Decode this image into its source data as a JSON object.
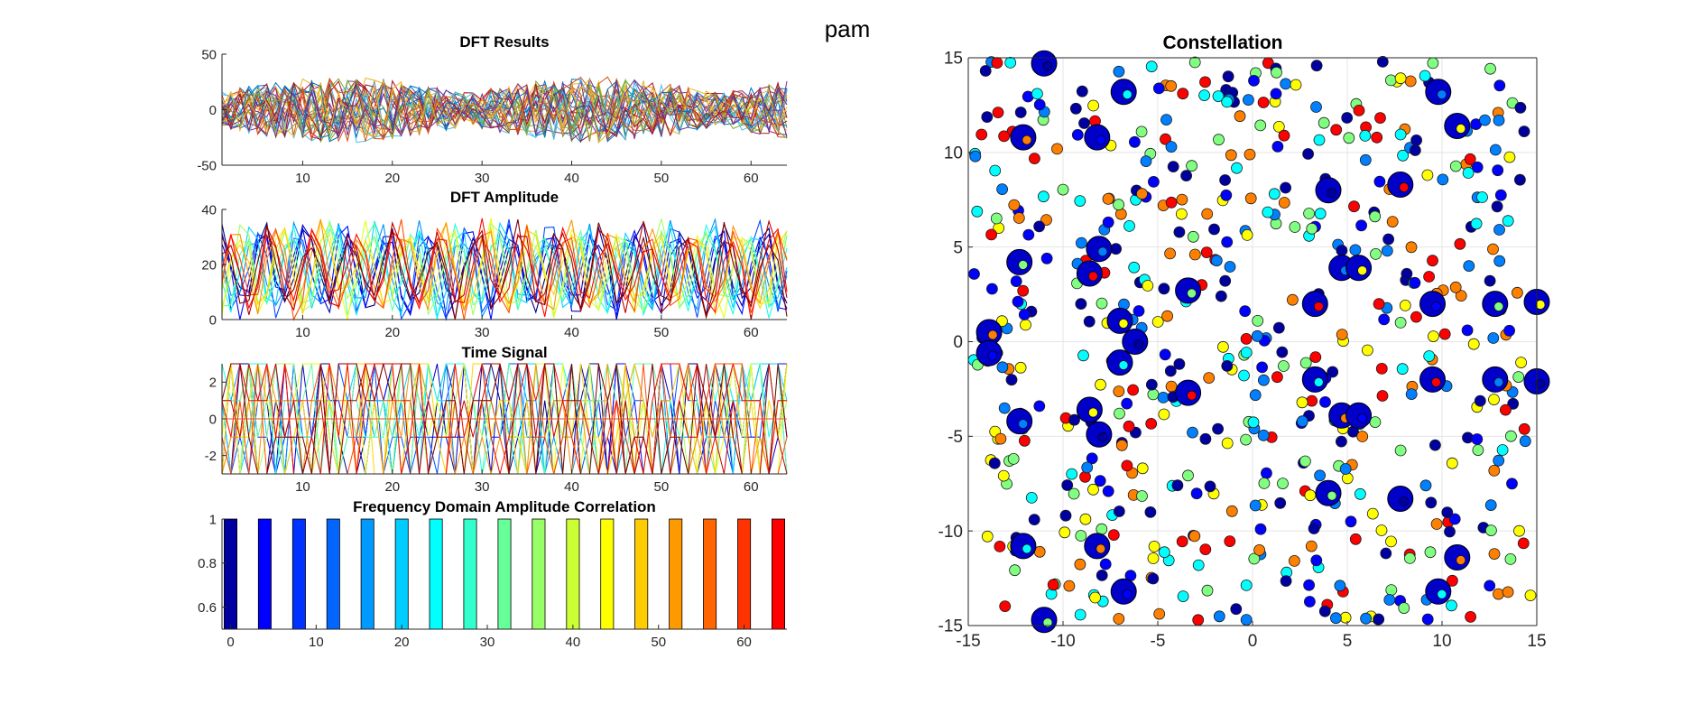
{
  "figure": {
    "suptitle": "pam"
  },
  "chart_data": [
    {
      "type": "line",
      "title": "DFT Results",
      "xlim": [
        1,
        64
      ],
      "ylim": [
        -50,
        50
      ],
      "xticks": [
        10,
        20,
        30,
        40,
        50,
        60
      ],
      "yticks": [
        -50,
        0,
        50
      ],
      "series_count": 32,
      "value_range": [
        -35,
        35
      ]
    },
    {
      "type": "line",
      "title": "DFT Amplitude",
      "xlim": [
        1,
        64
      ],
      "ylim": [
        0,
        40
      ],
      "xticks": [
        10,
        20,
        30,
        40,
        50,
        60
      ],
      "yticks": [
        0,
        20,
        40
      ],
      "series_count": 16,
      "value_range": [
        0,
        38
      ]
    },
    {
      "type": "line",
      "title": "Time Signal",
      "xlim": [
        1,
        64
      ],
      "ylim": [
        -3,
        3
      ],
      "xticks": [
        10,
        20,
        30,
        40,
        50,
        60
      ],
      "yticks": [
        -2,
        0,
        2
      ],
      "series_count": 16,
      "levels": [
        -3,
        -1,
        1,
        3
      ]
    },
    {
      "type": "bar",
      "title": "Frequency Domain Amplitude Correlation",
      "xlim": [
        -1,
        65
      ],
      "ylim": [
        0.5,
        1
      ],
      "xticks": [
        0,
        10,
        20,
        30,
        40,
        50,
        60
      ],
      "yticks": [
        0.6,
        0.8,
        1
      ],
      "x": [
        0,
        4,
        8,
        12,
        16,
        20,
        24,
        28,
        32,
        36,
        40,
        44,
        48,
        52,
        56,
        60,
        64
      ],
      "values": [
        1,
        1,
        1,
        1,
        1,
        1,
        1,
        1,
        1,
        1,
        1,
        1,
        1,
        1,
        1,
        1,
        1
      ],
      "colors": [
        "#0000a0",
        "#0000ff",
        "#0033ff",
        "#0066ff",
        "#0099ff",
        "#00ccff",
        "#00ffff",
        "#33ffcc",
        "#66ff99",
        "#99ff66",
        "#ccff33",
        "#ffff00",
        "#ffcc00",
        "#ff9900",
        "#ff6600",
        "#ff3300",
        "#ff0000"
      ]
    },
    {
      "type": "scatter",
      "title": "Constellation",
      "xlim": [
        -15,
        15
      ],
      "ylim": [
        -15,
        15
      ],
      "xticks": [
        -15,
        -10,
        -5,
        0,
        5,
        10,
        15
      ],
      "yticks": [
        -15,
        -10,
        -5,
        0,
        5,
        10,
        15
      ],
      "grid": true,
      "reference_points": [
        [
          -11,
          14.7
        ],
        [
          -6.8,
          13.2
        ],
        [
          -12.1,
          10.8
        ],
        [
          -8.2,
          10.8
        ],
        [
          -12.3,
          4.2
        ],
        [
          -8.6,
          3.6
        ],
        [
          -8.1,
          4.9
        ],
        [
          -7.0,
          1.1
        ],
        [
          -6.2,
          0
        ],
        [
          -7.0,
          -1.1
        ],
        [
          -13.9,
          0.5
        ],
        [
          -13.9,
          -0.6
        ],
        [
          -3.4,
          2.7
        ],
        [
          -3.4,
          -2.7
        ],
        [
          -12.3,
          -4.2
        ],
        [
          -8.6,
          -3.6
        ],
        [
          -8.1,
          -4.9
        ],
        [
          -12.1,
          -10.8
        ],
        [
          -8.2,
          -10.8
        ],
        [
          -6.8,
          -13.2
        ],
        [
          -11,
          -14.7
        ],
        [
          3.3,
          2.0
        ],
        [
          4.7,
          3.9
        ],
        [
          5.6,
          3.9
        ],
        [
          4.0,
          8.0
        ],
        [
          3.3,
          -2.0
        ],
        [
          4.7,
          -3.9
        ],
        [
          5.6,
          -3.9
        ],
        [
          4.0,
          -8.0
        ],
        [
          7.8,
          8.3
        ],
        [
          9.8,
          13.2
        ],
        [
          10.8,
          11.4
        ],
        [
          7.8,
          -8.3
        ],
        [
          9.8,
          -13.2
        ],
        [
          10.8,
          -11.4
        ],
        [
          9.5,
          2.0
        ],
        [
          12.8,
          2.0
        ],
        [
          9.5,
          -2.0
        ],
        [
          12.8,
          -2.0
        ],
        [
          15,
          2.1
        ],
        [
          15,
          -2.1
        ]
      ],
      "colors_low_to_high": [
        "#0000a0",
        "#0000ff",
        "#0080ff",
        "#00ffff",
        "#80ff80",
        "#ffff00",
        "#ff8000",
        "#ff0000"
      ]
    }
  ]
}
